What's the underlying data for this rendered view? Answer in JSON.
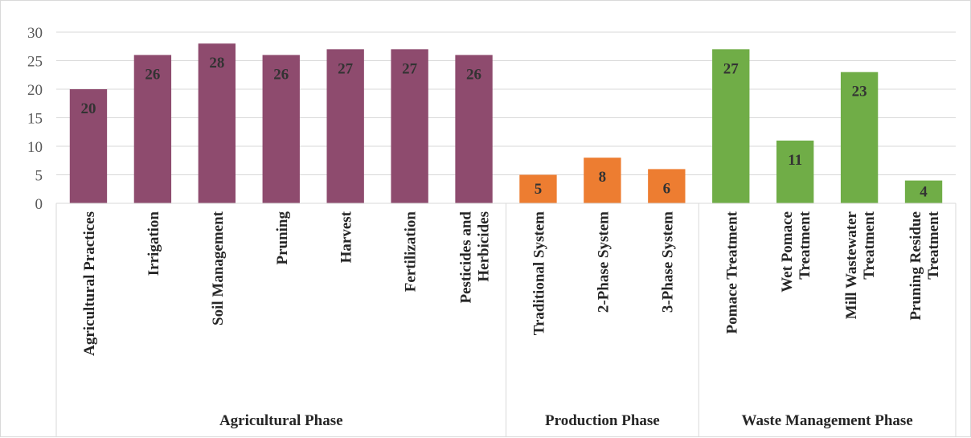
{
  "chart_data": {
    "type": "bar",
    "title": "",
    "xlabel": "",
    "ylabel": "",
    "ylim": [
      0,
      30
    ],
    "yticks": [
      0,
      5,
      10,
      15,
      20,
      25,
      30
    ],
    "grid": true,
    "legend": "none",
    "groups": [
      {
        "name": "Agricultural Phase",
        "color": "#8e4b6e",
        "categories": [
          [
            "Agricultural Practices"
          ],
          [
            "Irrigation"
          ],
          [
            "Soil Management"
          ],
          [
            "Pruning"
          ],
          [
            "Harvest"
          ],
          [
            "Fertilization"
          ],
          [
            "Pesticides and",
            "Herbicides"
          ]
        ],
        "values": [
          20,
          26,
          28,
          26,
          27,
          27,
          26
        ]
      },
      {
        "name": "Production Phase",
        "color": "#ed7d31",
        "categories": [
          [
            "Traditional System"
          ],
          [
            "2-Phase System"
          ],
          [
            "3-Phase System"
          ]
        ],
        "values": [
          5,
          8,
          6
        ]
      },
      {
        "name": "Waste Management Phase",
        "color": "#70ad47",
        "categories": [
          [
            "Pomace Treatment"
          ],
          [
            "Wet Pomace",
            "Treatment"
          ],
          [
            "Mill Wastewater",
            "Treatment"
          ],
          [
            "Pruning Residue",
            "Treatment"
          ]
        ],
        "values": [
          27,
          11,
          23,
          4
        ]
      }
    ]
  }
}
